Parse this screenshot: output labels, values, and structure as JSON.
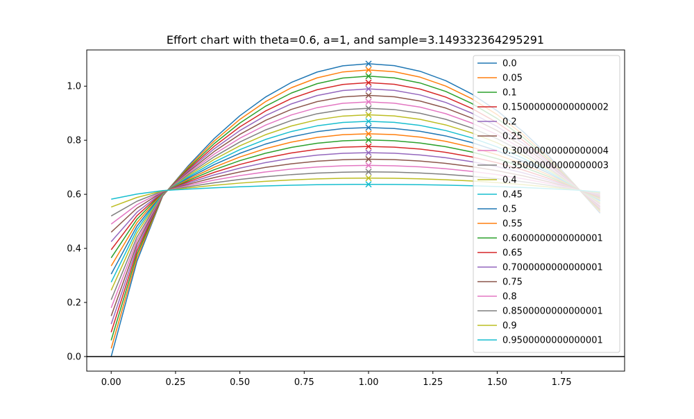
{
  "chart_data": {
    "type": "line",
    "title": "Effort chart with theta=0.6, a=1, and sample=3.149332364295291",
    "xlabel": "",
    "ylabel": "",
    "xlim": [
      -0.095,
      1.995
    ],
    "ylim": [
      -0.054,
      1.134
    ],
    "x_ticks": [
      0.0,
      0.25,
      0.5,
      0.75,
      1.0,
      1.25,
      1.5,
      1.75
    ],
    "x_tick_labels": [
      "0.00",
      "0.25",
      "0.50",
      "0.75",
      "1.00",
      "1.25",
      "1.50",
      "1.75"
    ],
    "y_ticks": [
      0.0,
      0.2,
      0.4,
      0.6,
      0.8,
      1.0
    ],
    "y_tick_labels": [
      "0.0",
      "0.2",
      "0.4",
      "0.6",
      "0.8",
      "1.0"
    ],
    "grid": false,
    "legend_position": "top-right",
    "hline": 0.0,
    "x": [
      0.0,
      0.1,
      0.2,
      0.3,
      0.4,
      0.5,
      0.6,
      0.7,
      0.8,
      0.9,
      1.0,
      1.1,
      1.2,
      1.3,
      1.4,
      1.5,
      1.6,
      1.7,
      1.8,
      1.9
    ],
    "marker_x": 1.0,
    "series": [
      {
        "name": "0.0",
        "color": "#1f77b4",
        "peak": 1.083,
        "start": 0.0,
        "end": 0.53
      },
      {
        "name": "0.05",
        "color": "#ff7f0e",
        "peak": 1.06,
        "start": 0.03,
        "end": 0.535
      },
      {
        "name": "0.1",
        "color": "#2ca02c",
        "peak": 1.037,
        "start": 0.06,
        "end": 0.54
      },
      {
        "name": "0.15000000000000002",
        "color": "#d62728",
        "peak": 1.013,
        "start": 0.09,
        "end": 0.545
      },
      {
        "name": "0.2",
        "color": "#9467bd",
        "peak": 0.99,
        "start": 0.12,
        "end": 0.55
      },
      {
        "name": "0.25",
        "color": "#8c564b",
        "peak": 0.966,
        "start": 0.15,
        "end": 0.555
      },
      {
        "name": "0.30000000000000004",
        "color": "#e377c2",
        "peak": 0.942,
        "start": 0.18,
        "end": 0.56
      },
      {
        "name": "0.35000000000000003",
        "color": "#7f7f7f",
        "peak": 0.918,
        "start": 0.21,
        "end": 0.565
      },
      {
        "name": "0.4",
        "color": "#bcbd22",
        "peak": 0.894,
        "start": 0.245,
        "end": 0.57
      },
      {
        "name": "0.45",
        "color": "#17becf",
        "peak": 0.87,
        "start": 0.275,
        "end": 0.575
      },
      {
        "name": "0.5",
        "color": "#1f77b4",
        "peak": 0.847,
        "start": 0.305,
        "end": 0.578
      },
      {
        "name": "0.55",
        "color": "#ff7f0e",
        "peak": 0.824,
        "start": 0.335,
        "end": 0.582
      },
      {
        "name": "0.6000000000000001",
        "color": "#2ca02c",
        "peak": 0.801,
        "start": 0.365,
        "end": 0.586
      },
      {
        "name": "0.65",
        "color": "#d62728",
        "peak": 0.777,
        "start": 0.395,
        "end": 0.59
      },
      {
        "name": "0.7000000000000001",
        "color": "#9467bd",
        "peak": 0.754,
        "start": 0.425,
        "end": 0.594
      },
      {
        "name": "0.75",
        "color": "#8c564b",
        "peak": 0.73,
        "start": 0.46,
        "end": 0.597
      },
      {
        "name": "0.8",
        "color": "#e377c2",
        "peak": 0.707,
        "start": 0.49,
        "end": 0.6
      },
      {
        "name": "0.8500000000000001",
        "color": "#7f7f7f",
        "peak": 0.683,
        "start": 0.52,
        "end": 0.603
      },
      {
        "name": "0.9",
        "color": "#bcbd22",
        "peak": 0.66,
        "start": 0.553,
        "end": 0.606
      },
      {
        "name": "0.9500000000000001",
        "color": "#17becf",
        "peak": 0.637,
        "start": 0.582,
        "end": 0.609
      }
    ]
  }
}
